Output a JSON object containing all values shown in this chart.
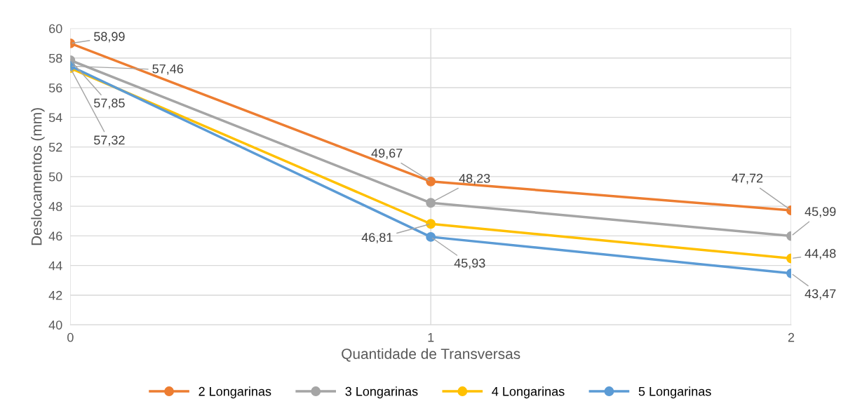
{
  "chart_data": {
    "type": "line",
    "xlabel": "Quantidade de Transversas",
    "ylabel": "Deslocamentos (mm)",
    "x": [
      0,
      1,
      2
    ],
    "xlim": [
      0,
      2
    ],
    "xticks": [
      0,
      1,
      2
    ],
    "ylim": [
      40,
      60
    ],
    "yticks": [
      40,
      42,
      44,
      46,
      48,
      50,
      52,
      54,
      56,
      58,
      60
    ],
    "grid": true,
    "legend": "bottom",
    "marker": "circle",
    "line_style": "solid",
    "series": [
      {
        "name": "2 Longarinas",
        "color": "#ed7d31",
        "values": [
          58.99,
          49.67,
          47.72
        ],
        "value_labels": [
          "58,99",
          "49,67",
          "47,72"
        ]
      },
      {
        "name": "3 Longarinas",
        "color": "#a5a5a5",
        "values": [
          57.85,
          48.23,
          45.99
        ],
        "value_labels": [
          "57,85",
          "48,23",
          "45,99"
        ]
      },
      {
        "name": "4 Longarinas",
        "color": "#ffc000",
        "values": [
          57.32,
          46.81,
          44.48
        ],
        "value_labels": [
          "57,32",
          "46,81",
          "44,48"
        ]
      },
      {
        "name": "5 Longarinas",
        "color": "#5b9bd5",
        "values": [
          57.46,
          45.93,
          43.47
        ],
        "value_labels": [
          "57,46",
          "45,93",
          "43,47"
        ]
      }
    ]
  }
}
